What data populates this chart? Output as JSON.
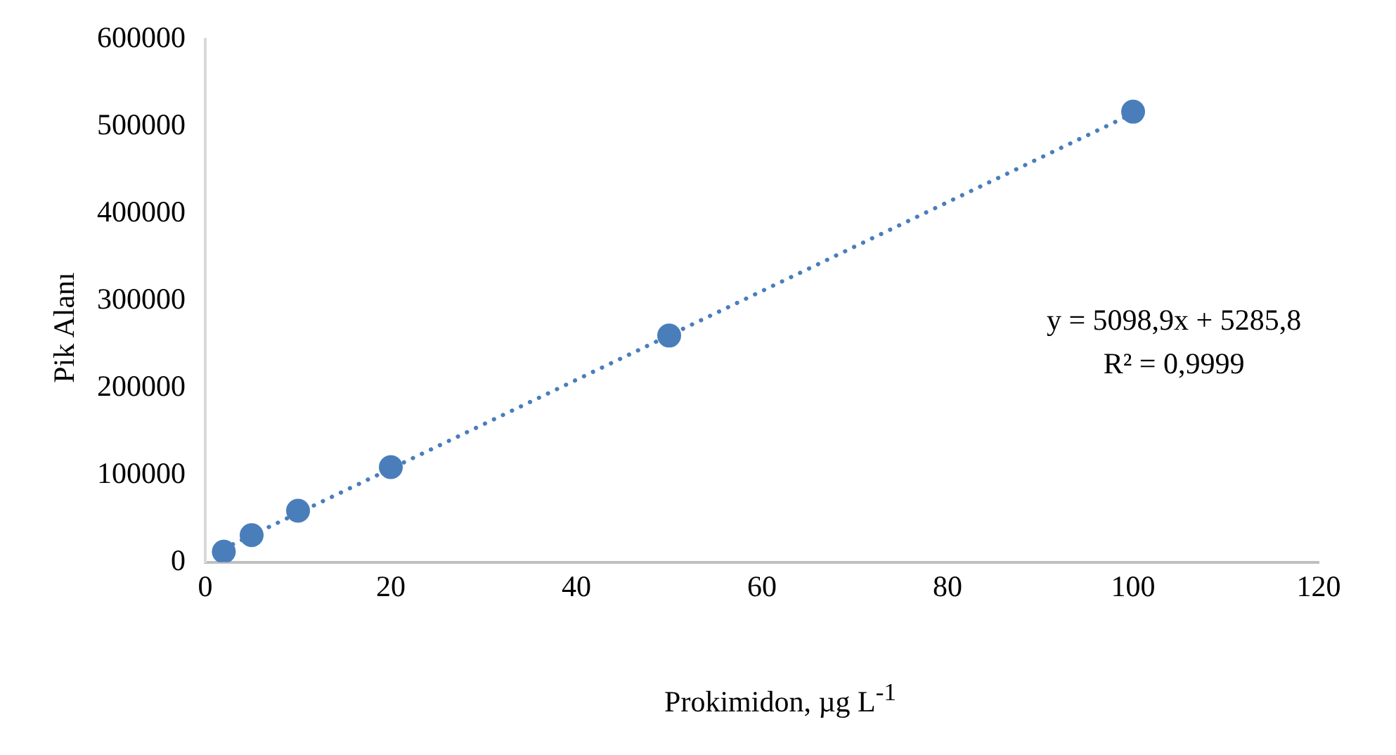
{
  "chart_data": {
    "type": "scatter",
    "xlabel": "Prokimidon, µg L$^{-1}$",
    "ylabel": "Pik Alanı",
    "series": [
      {
        "type": "scatter",
        "color": "#4a7ebb",
        "x": [
          2,
          5,
          10,
          20,
          50,
          100
        ],
        "values": [
          12000,
          31000,
          59000,
          109000,
          260000,
          517000
        ]
      },
      {
        "type": "line",
        "color": "#4a7ebb",
        "line_style": "dotted",
        "marker": "none",
        "x": [
          2,
          100
        ],
        "values": [
          15500,
          515000
        ]
      }
    ],
    "xlim": [
      0,
      120
    ],
    "xticks": [
      0,
      20,
      40,
      60,
      80,
      100,
      120
    ],
    "ylim": [
      0,
      600000
    ],
    "yticks": [
      0,
      100000,
      200000,
      300000,
      400000,
      500000,
      600000
    ],
    "grid": false,
    "legend": false,
    "marker": "circle",
    "annotations": [
      "y = 5098,9x + 5285,8",
      "R² = 0,9999"
    ]
  }
}
